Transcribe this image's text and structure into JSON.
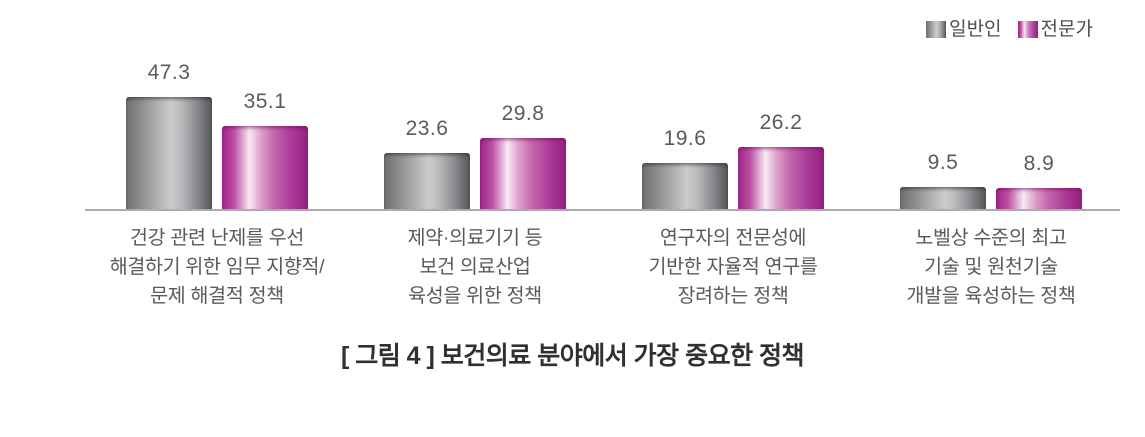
{
  "caption": "[ 그림 4 ] 보건의료 분야에서 가장 중요한 정책",
  "legend": {
    "items": [
      {
        "label": "일반인",
        "series_key": "general"
      },
      {
        "label": "전문가",
        "series_key": "expert"
      }
    ]
  },
  "chart_data": {
    "type": "bar",
    "title": "[ 그림 4 ] 보건의료 분야에서 가장 중요한 정책",
    "categories": [
      "건강 관련 난제를 우선 해결하기 위한 임무 지향적/문제 해결적 정책",
      "제약·의료기기 등 보건 의료산업 육성을 위한 정책",
      "연구자의 전문성에 기반한 자율적 연구를 장려하는 정책",
      "노벨상 수준의 최고 기술 및 원천기술 개발을 육성하는 정책"
    ],
    "category_lines": [
      [
        "건강 관련 난제를 우선",
        "해결하기 위한 임무 지향적/",
        "문제 해결적 정책"
      ],
      [
        "제약·의료기기 등",
        "보건 의료산업",
        "육성을 위한 정책"
      ],
      [
        "연구자의 전문성에",
        "기반한 자율적 연구를",
        "장려하는 정책"
      ],
      [
        "노벨상 수준의 최고",
        "기술 및 원천기술",
        "개발을 육성하는 정책"
      ]
    ],
    "series": [
      {
        "name": "일반인",
        "key": "general",
        "values": [
          47.3,
          23.6,
          19.6,
          9.5
        ],
        "color": "#58595b"
      },
      {
        "name": "전문가",
        "key": "expert",
        "values": [
          35.1,
          29.8,
          26.2,
          8.9
        ],
        "color": "#a3278d"
      }
    ],
    "value_labels": true,
    "xlabel": "",
    "ylabel": "",
    "ylim": [
      0,
      50
    ],
    "grid": false,
    "legend_position": "top-right"
  },
  "colors": {
    "gray_series_dark": "#58595b",
    "gray_series_light": "#cbccce",
    "magenta_series_dark": "#951e81",
    "magenta_series_light": "#f7e9f3",
    "axis_line": "#aaacae",
    "value_label_text": "#595a5c",
    "category_text": "#595a5c",
    "caption_text": "#2f3032",
    "background": "#ffffff"
  }
}
